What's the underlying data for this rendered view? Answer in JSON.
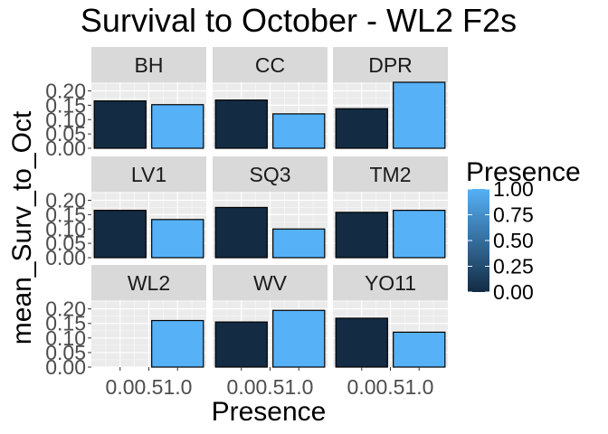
{
  "chart_data": {
    "type": "bar",
    "title": "Survival to October - WL2 F2s",
    "xlabel": "Presence",
    "ylabel": "mean_Surv_to_Oct",
    "ylim": [
      0,
      0.23
    ],
    "xlim": [
      -0.5,
      1.5
    ],
    "y_ticks": [
      "0.00",
      "0.05",
      "0.10",
      "0.15",
      "0.20"
    ],
    "x_ticks": [
      "0.00.51.0",
      "0.00.51.0",
      "0.00.51.0"
    ],
    "legend": {
      "title": "Presence",
      "ticks": [
        "1.00",
        "0.75",
        "0.50",
        "0.25",
        "0.00"
      ],
      "low_color": "#132B43",
      "high_color": "#56B1F7",
      "placement": "right"
    },
    "grid": true,
    "panels": [
      {
        "label": "BH",
        "bars": [
          {
            "x": 0,
            "value": 0.165
          },
          {
            "x": 1,
            "value": 0.152
          }
        ]
      },
      {
        "label": "CC",
        "bars": [
          {
            "x": 0,
            "value": 0.168
          },
          {
            "x": 1,
            "value": 0.12
          }
        ]
      },
      {
        "label": "DPR",
        "bars": [
          {
            "x": 0,
            "value": 0.138
          },
          {
            "x": 1,
            "value": 0.23
          }
        ]
      },
      {
        "label": "LV1",
        "bars": [
          {
            "x": 0,
            "value": 0.165
          },
          {
            "x": 1,
            "value": 0.133
          }
        ]
      },
      {
        "label": "SQ3",
        "bars": [
          {
            "x": 0,
            "value": 0.175
          },
          {
            "x": 1,
            "value": 0.1
          }
        ]
      },
      {
        "label": "TM2",
        "bars": [
          {
            "x": 0,
            "value": 0.158
          },
          {
            "x": 1,
            "value": 0.165
          }
        ]
      },
      {
        "label": "WL2",
        "bars": [
          {
            "x": 1,
            "value": 0.16
          }
        ]
      },
      {
        "label": "WV",
        "bars": [
          {
            "x": 0,
            "value": 0.155
          },
          {
            "x": 1,
            "value": 0.195
          }
        ]
      },
      {
        "label": "YO11",
        "bars": [
          {
            "x": 0,
            "value": 0.168
          },
          {
            "x": 1,
            "value": 0.12
          }
        ]
      }
    ],
    "colors": {
      "panel_bg": "#EBEBEB",
      "strip_bg": "#D9D9D9",
      "grid_major": "#FFFFFF",
      "bar_low": "#132B43",
      "bar_high": "#56B1F7",
      "bar_outline": "#000000"
    }
  }
}
